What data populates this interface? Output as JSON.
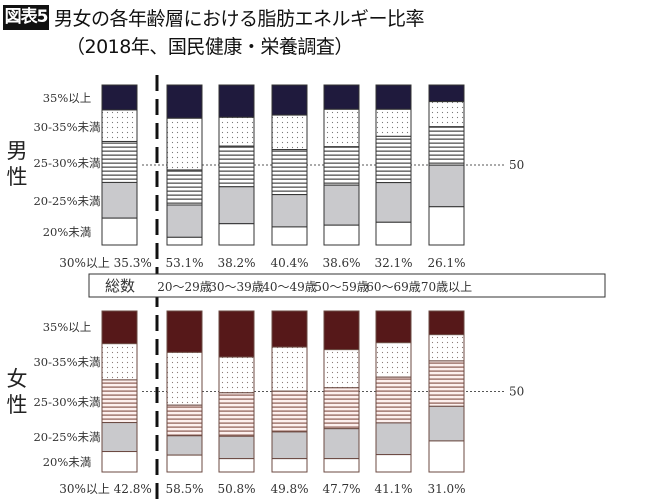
{
  "header": {
    "badge": "図表5",
    "title": "男女の各年齢層における脂肪エネルギー比率",
    "subtitle": "（2018年、国民健康・栄養調査）"
  },
  "chart_data": [
    {
      "type": "bar",
      "stacked": true,
      "orientation": "vertical",
      "group_label": "男性",
      "categories": [
        "総数",
        "20～29歳",
        "30～39歳",
        "40～49歳",
        "50～59歳",
        "60～69歳",
        "70歳以上"
      ],
      "segment_labels": [
        "35%以上",
        "30-35%未満",
        "25-30%未満",
        "20-25%未満",
        "20%未満"
      ],
      "series": [
        {
          "name": "35%以上",
          "values": [
            15.6,
            20.8,
            20.2,
            18.8,
            15.2,
            15.2,
            10.4
          ]
        },
        {
          "name": "30-35%未満",
          "values": [
            19.7,
            32.3,
            18.0,
            21.6,
            23.4,
            16.9,
            15.7
          ]
        },
        {
          "name": "25-30%未満",
          "values": [
            25.6,
            21.9,
            25.4,
            28.1,
            24.0,
            28.9,
            24.0
          ]
        },
        {
          "name": "20-25%未満",
          "values": [
            22.3,
            20.2,
            23.1,
            20.2,
            25.0,
            24.8,
            26.0
          ]
        },
        {
          "name": "20%未満",
          "values": [
            16.8,
            4.8,
            13.3,
            11.3,
            12.4,
            14.2,
            23.9
          ]
        }
      ],
      "over30_prefix": "30%以上",
      "over30_labels": [
        "35.3%",
        "53.1%",
        "38.2%",
        "40.4%",
        "38.6%",
        "32.1%",
        "26.1%"
      ],
      "reference_line": {
        "value": 50,
        "label": "50",
        "style": "dotted"
      },
      "ylim": [
        0,
        100
      ],
      "colors": {
        "top": "#1f1a3d",
        "gray": "#c9c9cc",
        "line": "#555555",
        "dots": "#777777"
      }
    },
    {
      "type": "bar",
      "stacked": true,
      "orientation": "vertical",
      "group_label": "女性",
      "categories": [
        "総数",
        "20～29歳",
        "30～39歳",
        "40～49歳",
        "50～59歳",
        "60～69歳",
        "70歳以上"
      ],
      "segment_labels": [
        "35%以上",
        "30-35%未満",
        "25-30%未満",
        "20-25%未満",
        "20%未満"
      ],
      "series": [
        {
          "name": "35%以上",
          "values": [
            20.3,
            25.7,
            28.6,
            22.4,
            24.0,
            19.7,
            14.7
          ]
        },
        {
          "name": "30-35%未満",
          "values": [
            22.5,
            32.8,
            22.2,
            27.4,
            23.7,
            21.4,
            16.3
          ]
        },
        {
          "name": "25-30%未満",
          "values": [
            26.5,
            19.0,
            27.0,
            25.3,
            25.4,
            28.4,
            28.2
          ]
        },
        {
          "name": "20-25%未満",
          "values": [
            18.0,
            12.0,
            13.9,
            16.6,
            18.6,
            19.7,
            21.5
          ]
        },
        {
          "name": "20%未満",
          "values": [
            12.7,
            10.5,
            8.3,
            8.3,
            8.3,
            10.8,
            19.3
          ]
        }
      ],
      "over30_prefix": "30%以上",
      "over30_labels": [
        "42.8%",
        "58.5%",
        "50.8%",
        "49.8%",
        "47.7%",
        "41.1%",
        "31.0%"
      ],
      "reference_line": {
        "value": 50,
        "label": "50",
        "style": "dotted"
      },
      "ylim": [
        0,
        100
      ],
      "colors": {
        "top": "#561819",
        "gray": "#c9c9cc",
        "line": "#8a5a50",
        "dots": "#8a7a76"
      }
    }
  ],
  "category_box_label": "総数"
}
